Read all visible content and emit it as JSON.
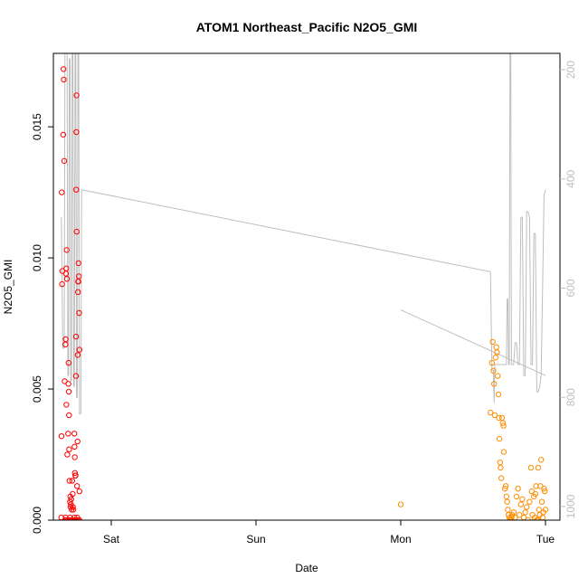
{
  "chart_data": {
    "type": "scatter",
    "title": "ATOM1 Northeast_Pacific N2O5_GMI",
    "xlabel": "Date",
    "ylabel": "N2O5_GMI",
    "x_unit": "days since Fri 00:00",
    "xlim": [
      0.6,
      4.1
    ],
    "ylim": [
      0,
      0.0178
    ],
    "x_ticks": [
      {
        "label": "Sat",
        "value": 1.0
      },
      {
        "label": "Sun",
        "value": 2.0
      },
      {
        "label": "Mon",
        "value": 3.0
      },
      {
        "label": "Tue",
        "value": 4.0
      }
    ],
    "y_ticks": [
      {
        "label": "0.000",
        "value": 0.0
      },
      {
        "label": "0.005",
        "value": 0.005
      },
      {
        "label": "0.010",
        "value": 0.01
      },
      {
        "label": "0.015",
        "value": 0.015
      }
    ],
    "right_axis": {
      "quantity": "pressure",
      "reversed": true,
      "lim": [
        1025,
        170
      ],
      "ticks": [
        {
          "label": "200",
          "value": 200
        },
        {
          "label": "400",
          "value": 400
        },
        {
          "label": "600",
          "value": 600
        },
        {
          "label": "800",
          "value": 800
        },
        {
          "label": "1000",
          "value": 1000
        }
      ]
    },
    "grid": false,
    "series": [
      {
        "name": "",
        "color": "#ff0000",
        "points": [
          [
            0.655,
            0.0001
          ],
          [
            0.656,
            0.0032
          ],
          [
            0.658,
            0.0125
          ],
          [
            0.66,
            0.009
          ],
          [
            0.662,
            0.0095
          ],
          [
            0.668,
            0.0147
          ],
          [
            0.67,
            0.0172
          ],
          [
            0.672,
            0.0168
          ],
          [
            0.675,
            0.0137
          ],
          [
            0.678,
            0.0053
          ],
          [
            0.683,
            0.0067
          ],
          [
            0.685,
            0.0069
          ],
          [
            0.687,
            0.0094
          ],
          [
            0.689,
            0.0096
          ],
          [
            0.69,
            0.0044
          ],
          [
            0.692,
            0.0103
          ],
          [
            0.694,
            0.0092
          ],
          [
            0.696,
            0.0025
          ],
          [
            0.702,
            0.0033
          ],
          [
            0.704,
            0.0052
          ],
          [
            0.705,
            0.006
          ],
          [
            0.707,
            0.0049
          ],
          [
            0.708,
            0.004
          ],
          [
            0.709,
            0.0027
          ],
          [
            0.711,
            0.0015
          ],
          [
            0.715,
            0.0007
          ],
          [
            0.717,
            0.0009
          ],
          [
            0.719,
            0.0005
          ],
          [
            0.721,
            0.0006
          ],
          [
            0.723,
            0.0008
          ],
          [
            0.726,
            0.0004
          ],
          [
            0.73,
            0.0015
          ],
          [
            0.733,
            0.001
          ],
          [
            0.735,
            0.0005
          ],
          [
            0.738,
            0.0004
          ],
          [
            0.745,
            0.0033
          ],
          [
            0.746,
            0.0028
          ],
          [
            0.748,
            0.0024
          ],
          [
            0.749,
            0.0018
          ],
          [
            0.752,
            0.0017
          ],
          [
            0.754,
            0.0017
          ],
          [
            0.756,
            0.0055
          ],
          [
            0.757,
            0.007
          ],
          [
            0.758,
            0.0126
          ],
          [
            0.759,
            0.0148
          ],
          [
            0.76,
            0.0162
          ],
          [
            0.761,
            0.011
          ],
          [
            0.764,
            0.0013
          ],
          [
            0.767,
            0.003
          ],
          [
            0.768,
            0.0063
          ],
          [
            0.77,
            0.0087
          ],
          [
            0.771,
            0.0091
          ],
          [
            0.773,
            0.0091
          ],
          [
            0.774,
            0.0098
          ],
          [
            0.776,
            0.0093
          ],
          [
            0.778,
            0.0079
          ],
          [
            0.78,
            0.0065
          ],
          [
            0.78,
            0.0011
          ],
          [
            0.68,
            0.0
          ],
          [
            0.69,
            0.0
          ],
          [
            0.7,
            0.0
          ],
          [
            0.71,
            0.0
          ],
          [
            0.72,
            0.0
          ],
          [
            0.73,
            0.0
          ],
          [
            0.74,
            0.0
          ],
          [
            0.75,
            0.0
          ],
          [
            0.76,
            0.0
          ],
          [
            0.77,
            0.0
          ],
          [
            0.685,
            0.0001
          ],
          [
            0.715,
            0.0001
          ],
          [
            0.745,
            0.0001
          ],
          [
            0.765,
            0.0001
          ],
          [
            0.78,
            0.0
          ]
        ]
      },
      {
        "name": "",
        "color": "#ff8c00",
        "points": [
          [
            3.0,
            0.0006
          ],
          [
            3.62,
            0.0041
          ],
          [
            3.63,
            0.006
          ],
          [
            3.635,
            0.0068
          ],
          [
            3.64,
            0.0057
          ],
          [
            3.645,
            0.0052
          ],
          [
            3.65,
            0.004
          ],
          [
            3.655,
            0.0062
          ],
          [
            3.66,
            0.0066
          ],
          [
            3.665,
            0.0064
          ],
          [
            3.67,
            0.0055
          ],
          [
            3.675,
            0.0048
          ],
          [
            3.678,
            0.0039
          ],
          [
            3.682,
            0.0031
          ],
          [
            3.686,
            0.0022
          ],
          [
            3.69,
            0.002
          ],
          [
            3.695,
            0.0016
          ],
          [
            3.7,
            0.0039
          ],
          [
            3.705,
            0.0037
          ],
          [
            3.71,
            0.0036
          ],
          [
            3.712,
            0.0026
          ],
          [
            3.72,
            0.0012
          ],
          [
            3.725,
            0.0013
          ],
          [
            3.73,
            0.0009
          ],
          [
            3.735,
            0.0007
          ],
          [
            3.74,
            0.0004
          ],
          [
            3.745,
            0.0002
          ],
          [
            3.75,
            0.0001
          ],
          [
            3.755,
            0.0
          ],
          [
            3.76,
            0.0
          ],
          [
            3.765,
            0.0001
          ],
          [
            3.77,
            0.0002
          ],
          [
            3.78,
            0.0003
          ],
          [
            3.79,
            0.0001
          ],
          [
            3.8,
            0.0009
          ],
          [
            3.81,
            0.0012
          ],
          [
            3.82,
            0.0002
          ],
          [
            3.83,
            0.0006
          ],
          [
            3.84,
            0.0008
          ],
          [
            3.85,
            0.0001
          ],
          [
            3.86,
            0.0003
          ],
          [
            3.87,
            0.0005
          ],
          [
            3.88,
            0.0
          ],
          [
            3.89,
            0.0007
          ],
          [
            3.9,
            0.002
          ],
          [
            3.905,
            0.0011
          ],
          [
            3.91,
            0.0002
          ],
          [
            3.92,
            0.0009
          ],
          [
            3.925,
            0.0001
          ],
          [
            3.93,
            0.001
          ],
          [
            3.935,
            0.0013
          ],
          [
            3.94,
            0.0
          ],
          [
            3.945,
            0.0
          ],
          [
            3.95,
            0.002
          ],
          [
            3.955,
            0.0004
          ],
          [
            3.96,
            0.0002
          ],
          [
            3.965,
            0.0013
          ],
          [
            3.97,
            0.0023
          ],
          [
            3.975,
            0.0007
          ],
          [
            3.98,
            0.0001
          ],
          [
            3.985,
            0.0003
          ],
          [
            3.99,
            0.0012
          ],
          [
            3.995,
            0.0011
          ],
          [
            4.0,
            0.0004
          ]
        ]
      },
      {
        "name": "",
        "color": "#bebebe",
        "axis": "right",
        "line": [
          [
            0.655,
            470
          ],
          [
            0.665,
            710
          ],
          [
            0.675,
            710
          ],
          [
            0.68,
            170
          ],
          [
            0.69,
            170
          ],
          [
            0.695,
            160
          ],
          [
            0.7,
            760
          ],
          [
            0.705,
            760
          ],
          [
            0.71,
            180
          ],
          [
            0.715,
            180
          ],
          [
            0.72,
            770
          ],
          [
            0.725,
            770
          ],
          [
            0.73,
            160
          ],
          [
            0.735,
            160
          ],
          [
            0.74,
            780
          ],
          [
            0.745,
            780
          ],
          [
            0.75,
            160
          ],
          [
            0.755,
            160
          ],
          [
            0.76,
            800
          ],
          [
            0.765,
            800
          ],
          [
            0.77,
            170
          ],
          [
            0.775,
            170
          ],
          [
            0.78,
            830
          ],
          [
            0.785,
            830
          ],
          [
            0.79,
            830
          ],
          [
            0.795,
            420
          ],
          [
            0.8,
            420
          ],
          [
            0.8,
            420
          ],
          [
            3.62,
            570
          ],
          [
            3.63,
            750
          ],
          [
            3.635,
            750
          ],
          [
            3.64,
            750
          ],
          [
            3.645,
            810
          ],
          [
            3.65,
            740
          ],
          [
            3.655,
            740
          ],
          [
            3.66,
            740
          ],
          [
            3.665,
            740
          ],
          [
            3.67,
            740
          ],
          [
            3.68,
            740
          ],
          [
            3.7,
            740
          ],
          [
            3.72,
            740
          ],
          [
            3.73,
            740
          ],
          [
            3.735,
            620
          ],
          [
            3.74,
            620
          ],
          [
            3.745,
            740
          ],
          [
            3.75,
            740
          ],
          [
            3.755,
            160
          ],
          [
            3.76,
            160
          ],
          [
            3.765,
            740
          ],
          [
            3.77,
            740
          ],
          [
            3.78,
            740
          ],
          [
            3.79,
            700
          ],
          [
            3.8,
            700
          ],
          [
            3.81,
            740
          ],
          [
            3.82,
            740
          ],
          [
            3.83,
            470
          ],
          [
            3.84,
            470
          ],
          [
            3.85,
            760
          ],
          [
            3.86,
            760
          ],
          [
            3.87,
            460
          ],
          [
            3.88,
            460
          ],
          [
            3.89,
            470
          ],
          [
            3.9,
            740
          ],
          [
            3.91,
            740
          ],
          [
            3.92,
            500
          ],
          [
            3.93,
            500
          ],
          [
            3.94,
            790
          ],
          [
            3.95,
            790
          ],
          [
            3.96,
            780
          ],
          [
            3.97,
            760
          ],
          [
            3.98,
            600
          ],
          [
            3.99,
            430
          ],
          [
            4.0,
            420
          ]
        ],
        "line2": [
          [
            3.0,
            640
          ],
          [
            4.0,
            760
          ]
        ]
      }
    ]
  }
}
